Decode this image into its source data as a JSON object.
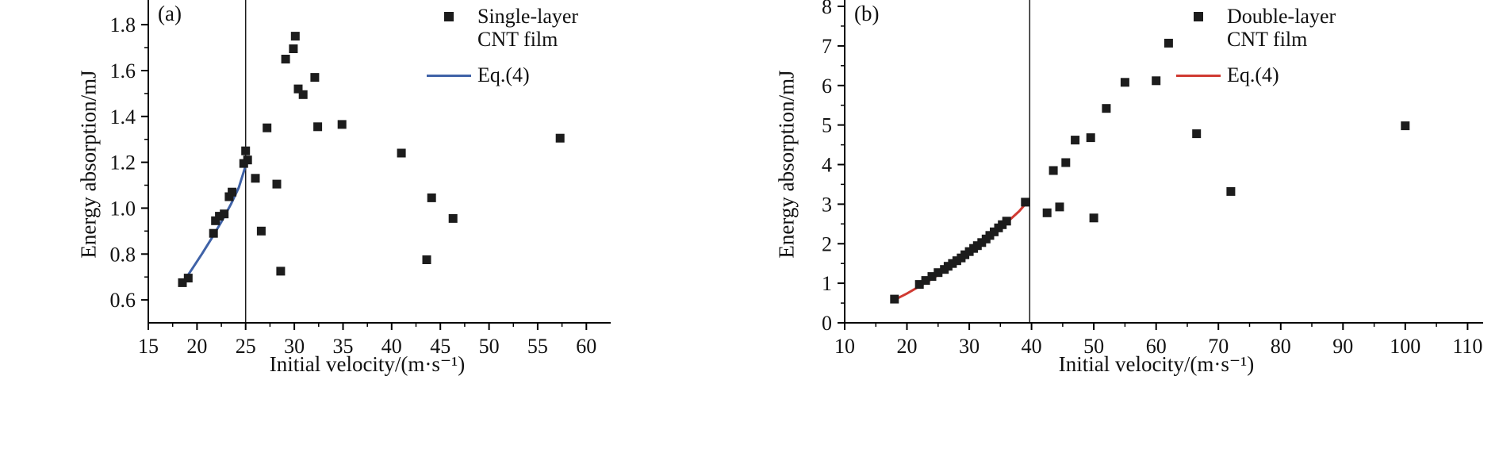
{
  "figure": {
    "background": "#ffffff"
  },
  "chart_data": [
    {
      "type": "scatter",
      "panel_label": "(a)",
      "xlabel": "Initial velocity/(m·s⁻¹)",
      "ylabel": "Energy absorption/mJ",
      "xlim": [
        15,
        62.5
      ],
      "ylim": [
        0.5,
        1.88
      ],
      "xticks": [
        15,
        20,
        25,
        30,
        35,
        40,
        45,
        50,
        55,
        60
      ],
      "xtick_labels": [
        "15",
        "20",
        "25",
        "30",
        "35",
        "40",
        "45",
        "50",
        "55",
        "60"
      ],
      "yticks": [
        0.6,
        0.8,
        1.0,
        1.2,
        1.4,
        1.6,
        1.8
      ],
      "ytick_labels": [
        "0.6",
        "0.8",
        "1.0",
        "1.2",
        "1.4",
        "1.6",
        "1.8"
      ],
      "minor_xticks": [
        17.5,
        22.5,
        27.5,
        32.5,
        37.5,
        42.5,
        47.5,
        52.5,
        57.5
      ],
      "minor_yticks": [
        0.7,
        0.9,
        1.1,
        1.3,
        1.5,
        1.7
      ],
      "vline_x": 25,
      "grid": false,
      "marker_color": "#1c1c1c",
      "fit_color": "#3f62a7",
      "legend": {
        "position": "upper-right",
        "series_label": "Single-layer CNT film",
        "fit_label": "Eq.(4)"
      },
      "points": [
        [
          18.5,
          0.675
        ],
        [
          19.1,
          0.695
        ],
        [
          21.7,
          0.89
        ],
        [
          21.9,
          0.945
        ],
        [
          22.3,
          0.965
        ],
        [
          22.8,
          0.975
        ],
        [
          23.3,
          1.05
        ],
        [
          23.6,
          1.07
        ],
        [
          24.8,
          1.195
        ],
        [
          25.0,
          1.25
        ],
        [
          25.2,
          1.21
        ],
        [
          26.0,
          1.13
        ],
        [
          26.6,
          0.9
        ],
        [
          27.2,
          1.35
        ],
        [
          28.2,
          1.105
        ],
        [
          28.6,
          0.725
        ],
        [
          29.1,
          1.65
        ],
        [
          29.9,
          1.695
        ],
        [
          30.1,
          1.75
        ],
        [
          30.4,
          1.52
        ],
        [
          30.9,
          1.495
        ],
        [
          32.1,
          1.57
        ],
        [
          32.4,
          1.355
        ],
        [
          34.9,
          1.365
        ],
        [
          41.0,
          1.24
        ],
        [
          43.6,
          0.775
        ],
        [
          44.1,
          1.045
        ],
        [
          46.3,
          0.955
        ],
        [
          57.3,
          1.305
        ]
      ],
      "fit_line": [
        [
          18.5,
          0.672
        ],
        [
          19.5,
          0.735
        ],
        [
          20.5,
          0.8
        ],
        [
          21.5,
          0.868
        ],
        [
          22.5,
          0.94
        ],
        [
          23.5,
          1.018
        ],
        [
          24.3,
          1.09
        ],
        [
          25.0,
          1.185
        ]
      ]
    },
    {
      "type": "scatter",
      "panel_label": "(b)",
      "xlabel": "Initial velocity/(m·s⁻¹)",
      "ylabel": "Energy absorption/mJ",
      "xlim": [
        10,
        112.5
      ],
      "ylim": [
        0,
        8
      ],
      "xticks": [
        10,
        20,
        30,
        40,
        50,
        60,
        70,
        80,
        90,
        100,
        110
      ],
      "xtick_labels": [
        "10",
        "20",
        "30",
        "40",
        "50",
        "60",
        "70",
        "80",
        "90",
        "100",
        "110"
      ],
      "yticks": [
        0,
        1,
        2,
        3,
        4,
        5,
        6,
        7,
        8
      ],
      "ytick_labels": [
        "0",
        "1",
        "2",
        "3",
        "4",
        "5",
        "6",
        "7",
        "8"
      ],
      "minor_xticks": [
        15,
        25,
        35,
        45,
        55,
        65,
        75,
        85,
        95,
        105
      ],
      "minor_yticks": [
        0.5,
        1.5,
        2.5,
        3.5,
        4.5,
        5.5,
        6.5,
        7.5
      ],
      "vline_x": 39.7,
      "grid": false,
      "marker_color": "#1c1c1c",
      "fit_color": "#d03a32",
      "legend": {
        "position": "upper-right",
        "series_label": "Double-layer CNT film",
        "fit_label": "Eq.(4)"
      },
      "points": [
        [
          18,
          0.6
        ],
        [
          22,
          0.97
        ],
        [
          23,
          1.07
        ],
        [
          24,
          1.17
        ],
        [
          25,
          1.27
        ],
        [
          26,
          1.35
        ],
        [
          26.6,
          1.43
        ],
        [
          27.3,
          1.5
        ],
        [
          28,
          1.57
        ],
        [
          28.7,
          1.64
        ],
        [
          29.3,
          1.72
        ],
        [
          30,
          1.8
        ],
        [
          30.7,
          1.88
        ],
        [
          31.3,
          1.95
        ],
        [
          32,
          2.03
        ],
        [
          32.7,
          2.12
        ],
        [
          33.3,
          2.21
        ],
        [
          34,
          2.3
        ],
        [
          34.7,
          2.4
        ],
        [
          35.3,
          2.48
        ],
        [
          36,
          2.57
        ],
        [
          39,
          3.05
        ],
        [
          42.5,
          2.78
        ],
        [
          43.5,
          3.85
        ],
        [
          44.5,
          2.93
        ],
        [
          45.5,
          4.05
        ],
        [
          47,
          4.62
        ],
        [
          49.5,
          4.68
        ],
        [
          50,
          2.65
        ],
        [
          52,
          5.42
        ],
        [
          55,
          6.08
        ],
        [
          60,
          6.12
        ],
        [
          62,
          7.07
        ],
        [
          66.5,
          4.78
        ],
        [
          72,
          3.32
        ],
        [
          100,
          4.98
        ]
      ],
      "fit_line": [
        [
          18,
          0.58
        ],
        [
          20,
          0.74
        ],
        [
          22,
          0.92
        ],
        [
          24,
          1.11
        ],
        [
          26,
          1.31
        ],
        [
          28,
          1.53
        ],
        [
          30,
          1.76
        ],
        [
          32,
          2.0
        ],
        [
          34,
          2.26
        ],
        [
          36,
          2.53
        ],
        [
          38,
          2.82
        ],
        [
          39,
          3.0
        ]
      ]
    }
  ]
}
